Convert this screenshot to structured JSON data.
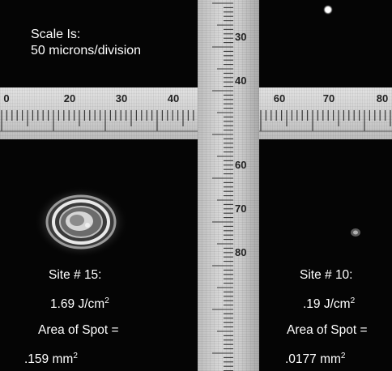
{
  "caption": {
    "line1": "Scale Is:",
    "line2": "50 microns/division"
  },
  "horizontal_scale": {
    "labels": [
      "0",
      "20",
      "30",
      "40",
      "60",
      "70",
      "80"
    ]
  },
  "vertical_scale": {
    "labels": [
      "30",
      "40",
      "60",
      "70",
      "80"
    ]
  },
  "sites": [
    {
      "title": "Site # 15:",
      "fluence_value": "1.69 J/cm",
      "fluence_sup": "2",
      "area_label": "Area of Spot =",
      "area_value": ".159 mm",
      "area_sup": "2"
    },
    {
      "title": "Site # 10:",
      "fluence_value": ".19 J/cm",
      "fluence_sup": "2",
      "area_label": "Area of Spot =",
      "area_value": ".0177 mm",
      "area_sup": "2"
    }
  ],
  "colors": {
    "background": "#050505",
    "scale_band": "#d0d0d0",
    "text": "#ffffff"
  }
}
